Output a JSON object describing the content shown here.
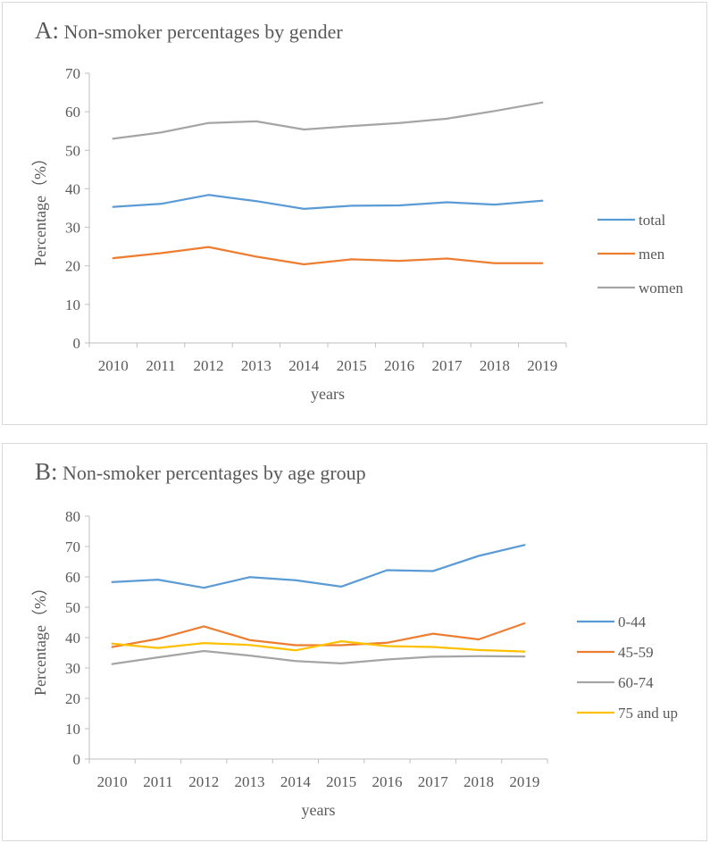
{
  "chart_data": [
    {
      "type": "line",
      "panel_letter": "A:",
      "title": "Non-smoker percentages by gender",
      "xlabel": "years",
      "ylabel": "Percentage（%）",
      "ylim": [
        0,
        70
      ],
      "ytick_step": 10,
      "grid": false,
      "legend_position": "right",
      "categories": [
        "2010",
        "2011",
        "2012",
        "2013",
        "2014",
        "2015",
        "2016",
        "2017",
        "2018",
        "2019"
      ],
      "series": [
        {
          "name": "total",
          "color": "#5b9bd5",
          "values": [
            35.3,
            36.1,
            38.4,
            36.8,
            34.8,
            35.6,
            35.7,
            36.5,
            35.9,
            36.9
          ]
        },
        {
          "name": "men",
          "color": "#ed7d31",
          "values": [
            22.0,
            23.3,
            24.9,
            22.4,
            20.4,
            21.7,
            21.3,
            21.9,
            20.7,
            20.7
          ]
        },
        {
          "name": "women",
          "color": "#a5a5a5",
          "values": [
            53.0,
            54.6,
            57.1,
            57.5,
            55.4,
            56.3,
            57.1,
            58.2,
            60.2,
            62.4
          ]
        }
      ]
    },
    {
      "type": "line",
      "panel_letter": "B:",
      "title": "Non-smoker percentages by age group",
      "xlabel": "years",
      "ylabel": "Percentage（%）",
      "ylim": [
        0,
        80
      ],
      "ytick_step": 10,
      "grid": false,
      "legend_position": "right",
      "categories": [
        "2010",
        "2011",
        "2012",
        "2013",
        "2014",
        "2015",
        "2016",
        "2017",
        "2018",
        "2019"
      ],
      "series": [
        {
          "name": "0-44",
          "color": "#5b9bd5",
          "values": [
            58.3,
            59.1,
            56.4,
            59.9,
            58.9,
            56.8,
            62.2,
            61.9,
            66.9,
            70.5
          ]
        },
        {
          "name": "45-59",
          "color": "#ed7d31",
          "values": [
            36.9,
            39.6,
            43.7,
            39.2,
            37.5,
            37.5,
            38.3,
            41.3,
            39.4,
            44.7
          ]
        },
        {
          "name": "60-74",
          "color": "#a5a5a5",
          "values": [
            31.3,
            33.5,
            35.6,
            34.1,
            32.3,
            31.5,
            32.8,
            33.7,
            33.9,
            33.8
          ]
        },
        {
          "name": "75 and up",
          "color": "#ffc000",
          "values": [
            38.0,
            36.6,
            38.2,
            37.6,
            35.8,
            38.8,
            37.2,
            36.9,
            35.9,
            35.4
          ]
        }
      ]
    }
  ]
}
